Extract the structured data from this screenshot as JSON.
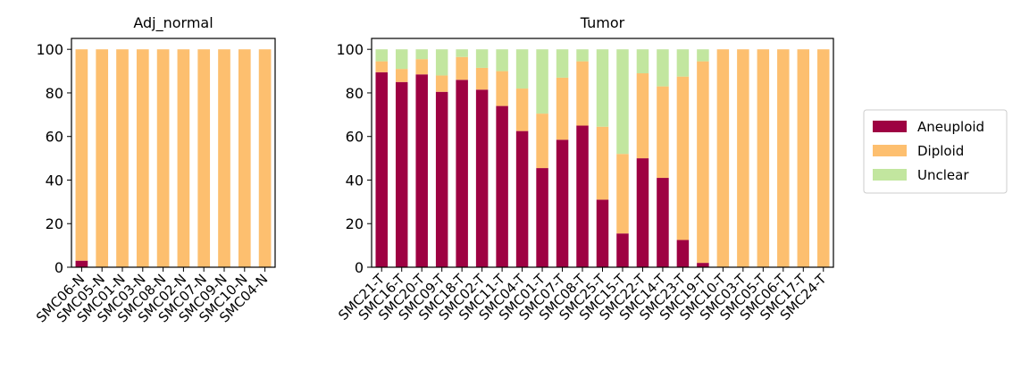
{
  "colors": {
    "Aneuploid": "#9e0142",
    "Diploid": "#fdbf6f",
    "Unclear": "#c2e69f"
  },
  "legend": {
    "placement": "right",
    "entries": [
      "Aneuploid",
      "Diploid",
      "Unclear"
    ]
  },
  "chart_data": [
    {
      "type": "bar",
      "stacked": true,
      "title": "Adj_normal",
      "xlabel": "",
      "ylabel": "",
      "ylim": [
        0,
        105
      ],
      "yticks": [
        0,
        20,
        40,
        60,
        80,
        100
      ],
      "categories": [
        "SMC06-N",
        "SMC05-N",
        "SMC01-N",
        "SMC03-N",
        "SMC08-N",
        "SMC02-N",
        "SMC07-N",
        "SMC09-N",
        "SMC10-N",
        "SMC04-N"
      ],
      "series": [
        {
          "name": "Aneuploid",
          "values": [
            3,
            0,
            0,
            0,
            0,
            0,
            0,
            0,
            0,
            0
          ]
        },
        {
          "name": "Diploid",
          "values": [
            97,
            100,
            100,
            100,
            100,
            100,
            100,
            100,
            100,
            100
          ]
        },
        {
          "name": "Unclear",
          "values": [
            0,
            0,
            0,
            0,
            0,
            0,
            0,
            0,
            0,
            0
          ]
        }
      ]
    },
    {
      "type": "bar",
      "stacked": true,
      "title": "Tumor",
      "xlabel": "",
      "ylabel": "",
      "ylim": [
        0,
        105
      ],
      "yticks": [
        0,
        20,
        40,
        60,
        80,
        100
      ],
      "categories": [
        "SMC21-T",
        "SMC16-T",
        "SMC20-T",
        "SMC09-T",
        "SMC18-T",
        "SMC02-T",
        "SMC11-T",
        "SMC04-T",
        "SMC01-T",
        "SMC07-T",
        "SMC08-T",
        "SMC25-T",
        "SMC15-T",
        "SMC22-T",
        "SMC14-T",
        "SMC23-T",
        "SMC19-T",
        "SMC10-T",
        "SMC03-T",
        "SMC05-T",
        "SMC06-T",
        "SMC17-T",
        "SMC24-T"
      ],
      "series": [
        {
          "name": "Aneuploid",
          "values": [
            89.5,
            85,
            88.5,
            80.5,
            86,
            81.5,
            74,
            62.5,
            45.5,
            58.5,
            65,
            31,
            15.5,
            50,
            41,
            12.5,
            2,
            0,
            0,
            0,
            0,
            0,
            0
          ]
        },
        {
          "name": "Diploid",
          "values": [
            5,
            6,
            7,
            7.5,
            10.5,
            10,
            16,
            19.5,
            25,
            28.5,
            29.5,
            33.5,
            36.5,
            39,
            42,
            75,
            92.5,
            100,
            100,
            100,
            100,
            100,
            100
          ]
        },
        {
          "name": "Unclear",
          "values": [
            5.5,
            9,
            4.5,
            12,
            3.5,
            8.5,
            10,
            18,
            29.5,
            13,
            5.5,
            35.5,
            48,
            11,
            17,
            12.5,
            5.5,
            0,
            0,
            0,
            0,
            0,
            0
          ]
        }
      ]
    }
  ]
}
